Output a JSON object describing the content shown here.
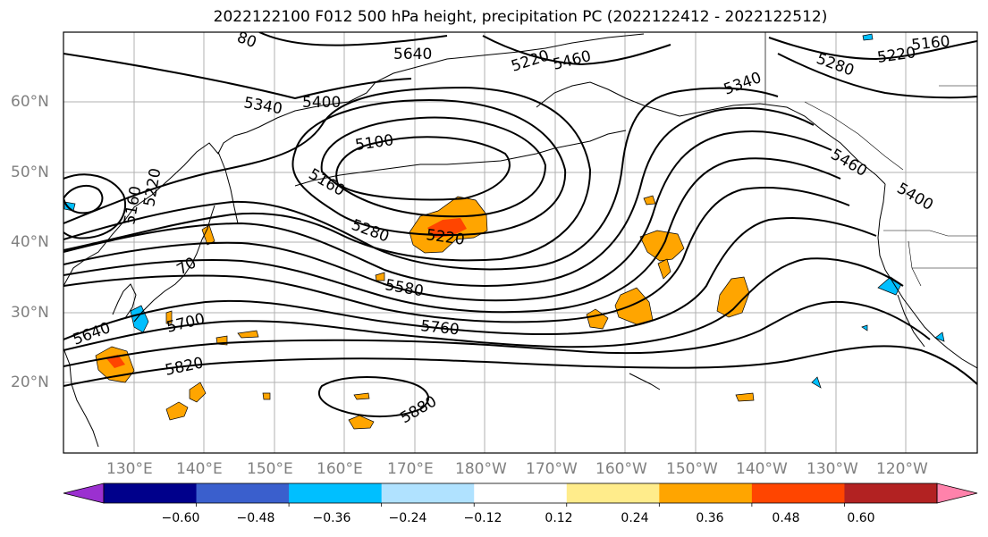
{
  "title": "2022122100 F012 500 hPa height, precipitation PC (2022122412 - 2022122512)",
  "lat_labels": [
    "60°N",
    "50°N",
    "40°N",
    "30°N",
    "20°N"
  ],
  "lon_labels": [
    "130°E",
    "140°E",
    "150°E",
    "160°E",
    "170°E",
    "180°W",
    "170°W",
    "160°W",
    "150°W",
    "140°W",
    "130°W",
    "120°W"
  ],
  "contour_labels": [
    "5640",
    "5220",
    "5460",
    "5160",
    "5220",
    "5280",
    "5400",
    "5340",
    "5100",
    "5160",
    "5280",
    "5220",
    "5580",
    "5760",
    "5640",
    "5700",
    "5820",
    "5880",
    "5340",
    "5460",
    "5400",
    "5160",
    "5220",
    "70",
    "80"
  ],
  "colorbar": {
    "ticks": [
      "−0.60",
      "−0.48",
      "−0.36",
      "−0.24",
      "−0.12",
      "0.12",
      "0.24",
      "0.36",
      "0.48",
      "0.60"
    ],
    "colors": [
      "#9b30d0",
      "#00008b",
      "#3a5fcd",
      "#00bfff",
      "#b0e2ff",
      "#ffffff",
      "#ffec8b",
      "#ffa500",
      "#ff4500",
      "#b22222",
      "#ff82ab"
    ]
  }
}
